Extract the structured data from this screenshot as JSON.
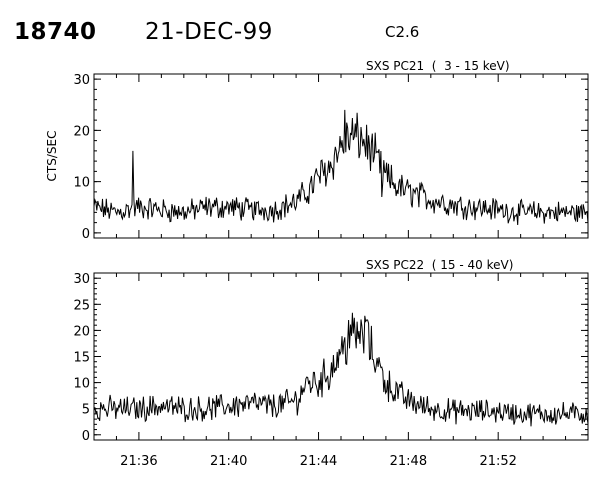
{
  "header": {
    "event_number": "18740",
    "date": "21-DEC-99",
    "flare_class": "C2.6"
  },
  "colors": {
    "ink": "#000000",
    "background": "#ffffff"
  },
  "chart_data": [
    {
      "type": "line",
      "title": "SXS PC21  (  3 - 15 keV)",
      "ylabel": "CTS/SEC",
      "xlim": [
        "21:34",
        "21:56"
      ],
      "ylim": [
        -1,
        31
      ],
      "yticks": [
        0,
        10,
        20,
        30
      ],
      "xticks": [
        "21:36",
        "21:40",
        "21:44",
        "21:48",
        "21:52"
      ],
      "x_tick_labels_shown": false,
      "series": [
        {
          "x": [
            "21:34",
            "21:35",
            "21:36",
            "21:37",
            "21:38",
            "21:39",
            "21:40",
            "21:41",
            "21:42",
            "21:43",
            "21:43:30",
            "21:44",
            "21:44:30",
            "21:45",
            "21:45:30",
            "21:46",
            "21:46:30",
            "21:47",
            "21:47:30",
            "21:48",
            "21:49",
            "21:50",
            "21:51",
            "21:52",
            "21:53",
            "21:54",
            "21:55",
            "21:56"
          ],
          "values": [
            5,
            4,
            5,
            4.5,
            4,
            5,
            5,
            4.5,
            4.5,
            6,
            8,
            11,
            13,
            17,
            19,
            18,
            15,
            11,
            9,
            8,
            6.5,
            5.5,
            5,
            4.5,
            4,
            4,
            4,
            4
          ],
          "spikes": [
            {
              "x": "21:35:45",
              "y": 16
            },
            {
              "x": "21:45:10",
              "y": 24
            },
            {
              "x": "21:46:50",
              "y": 7
            }
          ]
        }
      ]
    },
    {
      "type": "line",
      "title": "SXS PC22  ( 15 - 40 keV)",
      "xlim": [
        "21:34",
        "21:56"
      ],
      "ylim": [
        -1,
        31
      ],
      "yticks": [
        0,
        5,
        10,
        15,
        20,
        25,
        30
      ],
      "xticks": [
        "21:36",
        "21:40",
        "21:44",
        "21:48",
        "21:52"
      ],
      "x_tick_labels_shown": true,
      "series": [
        {
          "x": [
            "21:34",
            "21:35",
            "21:36",
            "21:37",
            "21:38",
            "21:39",
            "21:40",
            "21:41",
            "21:42",
            "21:43",
            "21:43:30",
            "21:44",
            "21:44:30",
            "21:45",
            "21:45:30",
            "21:46",
            "21:46:30",
            "21:47",
            "21:47:30",
            "21:48",
            "21:49",
            "21:50",
            "21:51",
            "21:52",
            "21:53",
            "21:54",
            "21:55",
            "21:56"
          ],
          "values": [
            5,
            5,
            5,
            5.5,
            5,
            5,
            5.5,
            6,
            5.5,
            6.5,
            10,
            10,
            12,
            16,
            19,
            19,
            15,
            10,
            8,
            6.5,
            5,
            4.5,
            4.5,
            4.5,
            4,
            4,
            4,
            4
          ],
          "spikes": [
            {
              "x": "21:45:20",
              "y": 22
            },
            {
              "x": "21:46:10",
              "y": 22
            }
          ]
        }
      ]
    }
  ]
}
